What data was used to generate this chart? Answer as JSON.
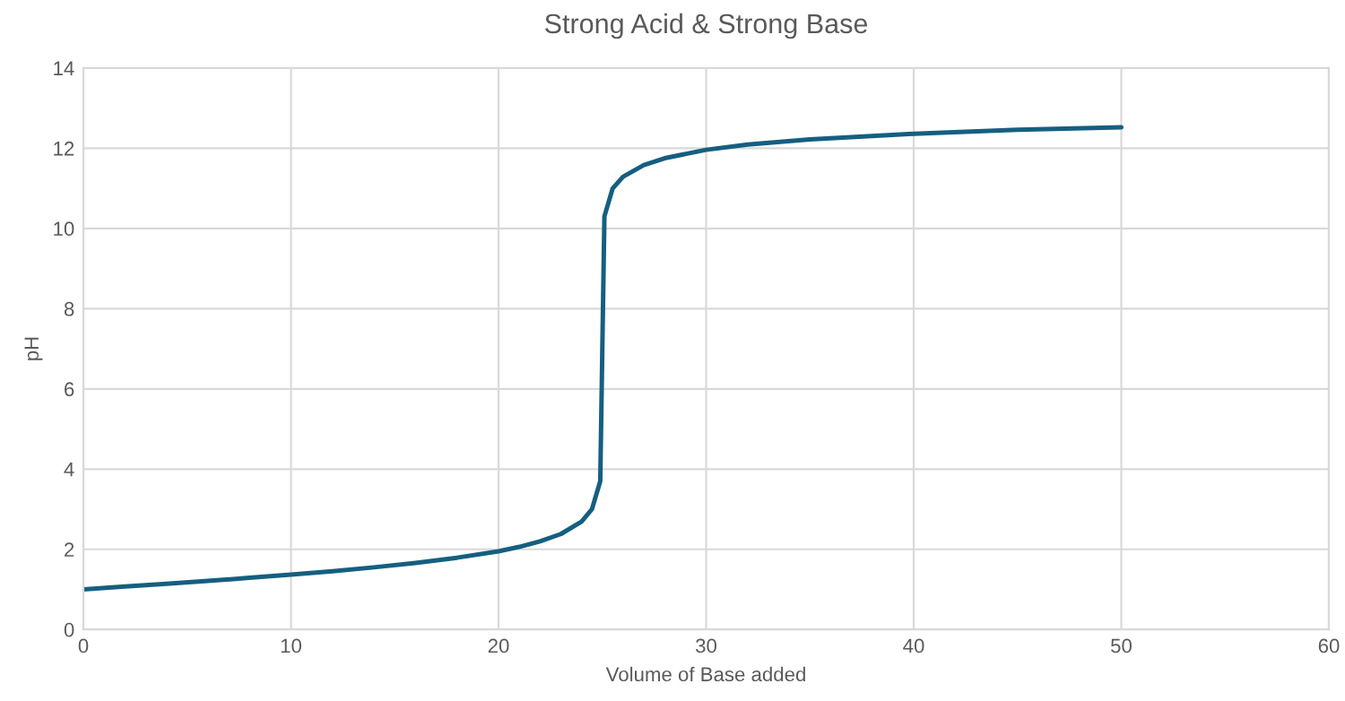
{
  "chart_data": {
    "type": "line",
    "title": "Strong Acid & Strong Base",
    "xlabel": "Volume of Base added",
    "ylabel": "pH",
    "series": [
      {
        "color": "#155f80",
        "x": [
          0,
          2,
          4,
          6,
          8,
          10,
          12,
          14,
          16,
          18,
          20,
          21,
          22,
          23,
          24,
          24.5,
          24.9,
          25,
          25.1,
          25.5,
          26,
          27,
          28,
          30,
          32,
          35,
          40,
          45,
          50
        ],
        "values": [
          1.0,
          1.07,
          1.14,
          1.21,
          1.29,
          1.37,
          1.45,
          1.55,
          1.66,
          1.79,
          1.95,
          2.06,
          2.2,
          2.38,
          2.69,
          3.0,
          3.7,
          7.0,
          10.3,
          11.0,
          11.29,
          11.58,
          11.75,
          11.96,
          12.09,
          12.22,
          12.36,
          12.46,
          12.52
        ]
      }
    ],
    "xlim": [
      0,
      60
    ],
    "xticks": [
      0,
      10,
      20,
      30,
      40,
      50,
      60
    ],
    "ylim": [
      0,
      14
    ],
    "yticks": [
      0,
      2,
      4,
      6,
      8,
      10,
      12,
      14
    ],
    "grid": true,
    "legend": false,
    "marker": "none",
    "line_style": "solid"
  }
}
